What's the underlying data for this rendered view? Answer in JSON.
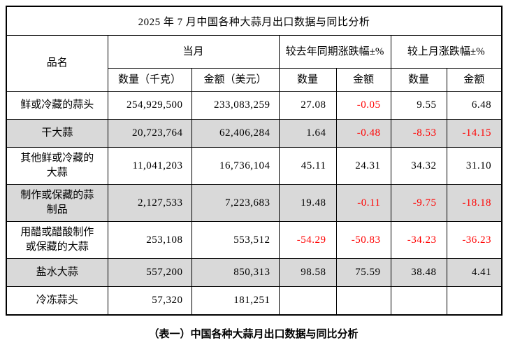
{
  "title": "2025 年 7 月中国各种大蒜月出口数据与同比分析",
  "caption": "（表一）中国各种大蒜月出口数据与同比分析",
  "colors": {
    "negative_text": "#ff0000",
    "alt_row_bg": "#d9d9d9",
    "border": "#000000",
    "text": "#000000",
    "page_bg": "#ffffff"
  },
  "header": {
    "product": "品名",
    "current_month": "当月",
    "yoy_change": "较去年同期涨跌幅±%",
    "mom_change": "较上月涨跌幅±%",
    "sub": [
      "数量（千克）",
      "金额（美元）",
      "数量",
      "金额",
      "数量",
      "金额"
    ]
  },
  "rows": [
    {
      "cells": [
        "鲜或冷藏的蒜头",
        "254,929,500",
        "233,083,259",
        "27.08",
        "-0.05",
        "9.55",
        "6.48"
      ]
    },
    {
      "cells": [
        "干大蒜",
        "20,723,764",
        "62,406,284",
        "1.64",
        "-0.48",
        "-8.53",
        "-14.15"
      ]
    },
    {
      "cells": [
        "其他鲜或冷藏的\n大蒜",
        "11,041,203",
        "16,736,104",
        "45.11",
        "24.31",
        "34.32",
        "31.10"
      ]
    },
    {
      "cells": [
        "制作或保藏的蒜\n制品",
        "2,127,533",
        "7,223,683",
        "19.48",
        "-0.11",
        "-9.75",
        "-18.18"
      ]
    },
    {
      "cells": [
        "用醋或醋酸制作\n或保藏的大蒜",
        "253,108",
        "553,512",
        "-54.29",
        "-50.83",
        "-34.23",
        "-36.23"
      ]
    },
    {
      "cells": [
        "盐水大蒜",
        "557,200",
        "850,313",
        "98.58",
        "75.59",
        "38.48",
        "4.41"
      ]
    },
    {
      "cells": [
        "冷冻蒜头",
        "57,320",
        "181,251",
        "",
        "",
        "",
        ""
      ]
    }
  ]
}
